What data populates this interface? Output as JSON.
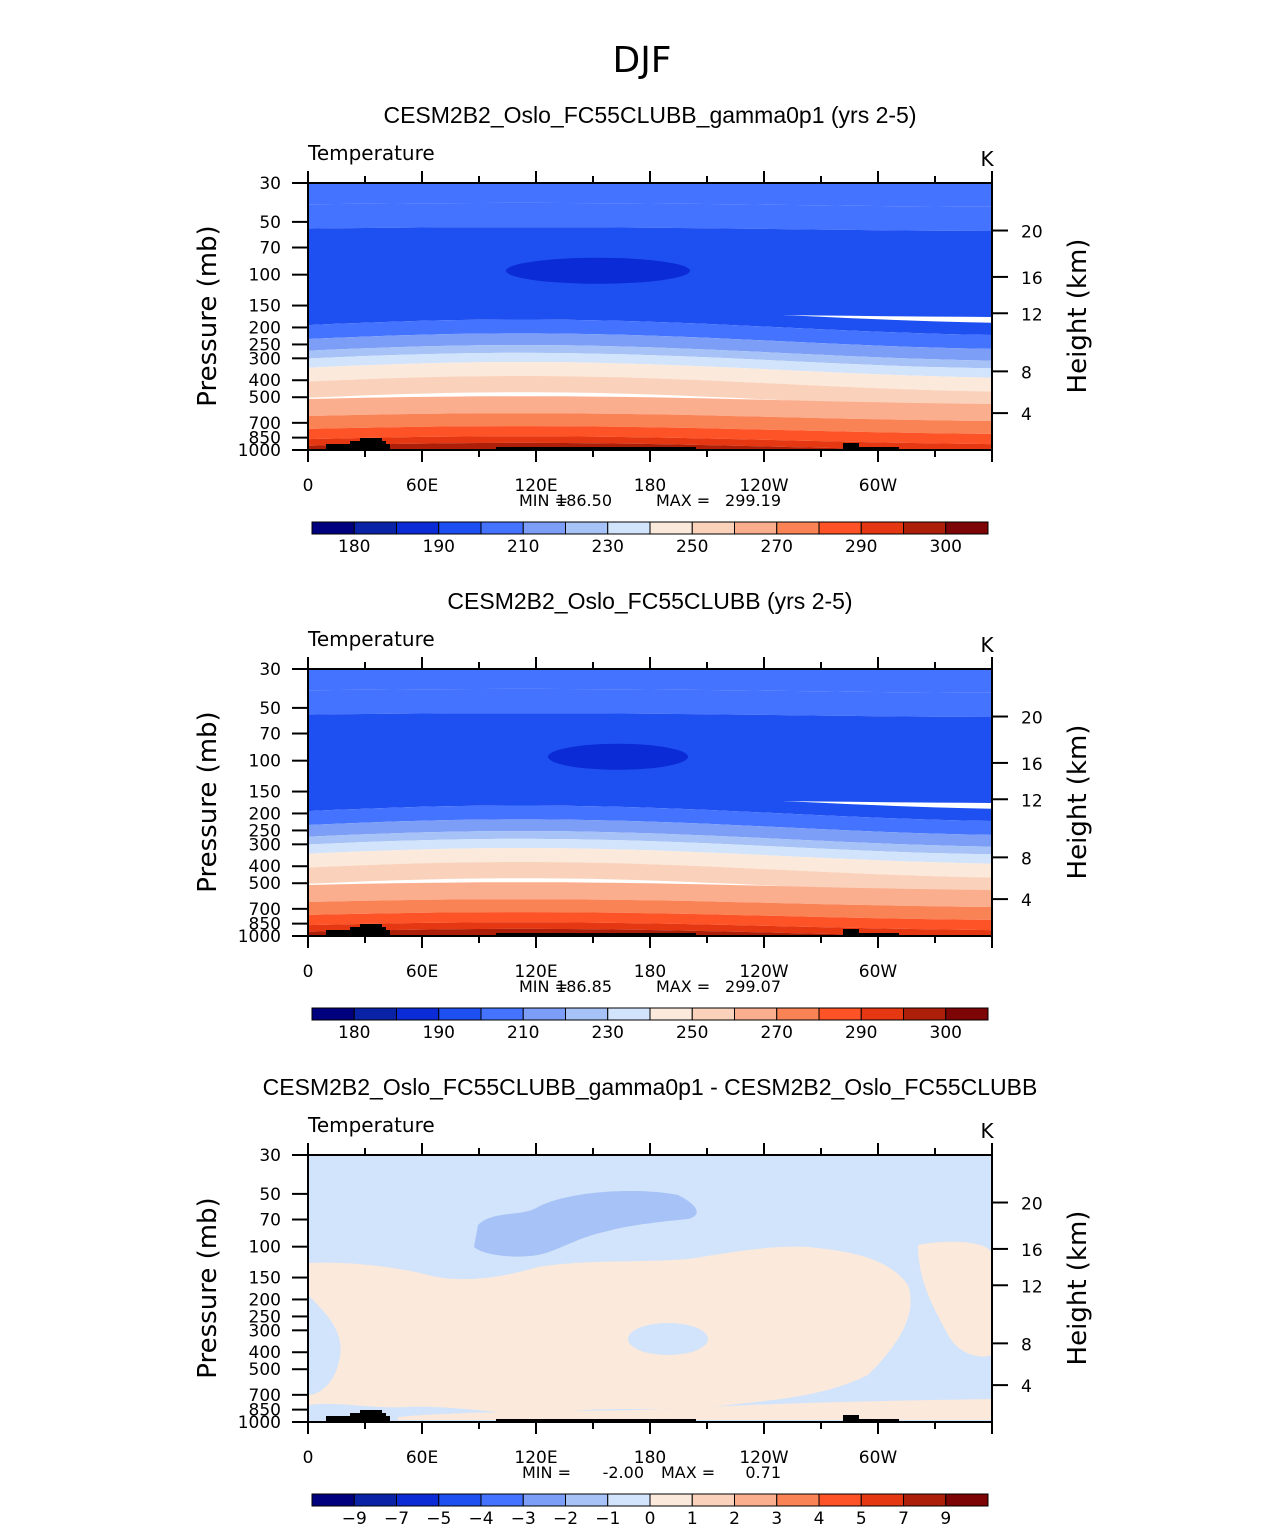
{
  "page_title": "DJF",
  "panels": [
    {
      "title": "CESM2B2_Oslo_FC55CLUBB_gamma0p1 (yrs 2-5)",
      "variable": "Temperature",
      "units": "K",
      "stats": {
        "min_label": "MIN =",
        "min": "186.50",
        "max_label": "MAX =",
        "max": "299.19"
      }
    },
    {
      "title": "CESM2B2_Oslo_FC55CLUBB (yrs 2-5)",
      "variable": "Temperature",
      "units": "K",
      "stats": {
        "min_label": "MIN =",
        "min": "186.85",
        "max_label": "MAX =",
        "max": "299.07"
      }
    },
    {
      "title": "CESM2B2_Oslo_FC55CLUBB_gamma0p1 - CESM2B2_Oslo_FC55CLUBB",
      "variable": "Temperature",
      "units": "K",
      "stats": {
        "min_label": "MIN =",
        "min": "-2.00",
        "max_label": "MAX =",
        "max": "0.71"
      }
    }
  ],
  "chart_data": [
    {
      "type": "heatmap",
      "title": "CESM2B2_Oslo_FC55CLUBB_gamma0p1 (yrs 2-5)",
      "ylabel": "Pressure (mb)",
      "y2label": "Height (km)",
      "x_ticks": [
        "0",
        "60E",
        "120E",
        "180",
        "120W",
        "60W"
      ],
      "y_ticks": [
        "30",
        "50",
        "70",
        "100",
        "150",
        "200",
        "250",
        "300",
        "400",
        "500",
        "700",
        "850",
        "1000"
      ],
      "y2_ticks": [
        "20",
        "16",
        "12",
        "8",
        "4"
      ],
      "ylim": [
        1000,
        30
      ],
      "y_scale": "log",
      "levels": [
        175,
        180,
        185,
        190,
        200,
        210,
        220,
        230,
        240,
        250,
        260,
        270,
        280,
        290,
        295,
        300
      ],
      "colorbar_labels": [
        "180",
        "190",
        "210",
        "230",
        "250",
        "270",
        "290",
        "300"
      ],
      "colors": [
        "#00007e",
        "#0a23a6",
        "#0b2bd6",
        "#1e4ff0",
        "#4373ff",
        "#7c9ef7",
        "#a6c2f6",
        "#d2e4fb",
        "#fbe9dc",
        "#fad2bb",
        "#fbae8e",
        "#fa8356",
        "#fd5326",
        "#e53711",
        "#ad1f08",
        "#7d0505"
      ],
      "band_temps_top_to_bottom": [
        206,
        202,
        196,
        199,
        205,
        215,
        225,
        235,
        245,
        255,
        265,
        275,
        285,
        292,
        297
      ]
    },
    {
      "type": "heatmap",
      "title": "CESM2B2_Oslo_FC55CLUBB (yrs 2-5)",
      "ylabel": "Pressure (mb)",
      "y2label": "Height (km)",
      "x_ticks": [
        "0",
        "60E",
        "120E",
        "180",
        "120W",
        "60W"
      ],
      "y_ticks": [
        "30",
        "50",
        "70",
        "100",
        "150",
        "200",
        "250",
        "300",
        "400",
        "500",
        "700",
        "850",
        "1000"
      ],
      "y2_ticks": [
        "20",
        "16",
        "12",
        "8",
        "4"
      ],
      "ylim": [
        1000,
        30
      ],
      "y_scale": "log",
      "levels": [
        175,
        180,
        185,
        190,
        200,
        210,
        220,
        230,
        240,
        250,
        260,
        270,
        280,
        290,
        295,
        300
      ],
      "colorbar_labels": [
        "180",
        "190",
        "210",
        "230",
        "250",
        "270",
        "290",
        "300"
      ],
      "colors": [
        "#00007e",
        "#0a23a6",
        "#0b2bd6",
        "#1e4ff0",
        "#4373ff",
        "#7c9ef7",
        "#a6c2f6",
        "#d2e4fb",
        "#fbe9dc",
        "#fad2bb",
        "#fbae8e",
        "#fa8356",
        "#fd5326",
        "#e53711",
        "#ad1f08",
        "#7d0505"
      ],
      "band_temps_top_to_bottom": [
        206,
        202,
        196,
        199,
        205,
        215,
        225,
        235,
        245,
        255,
        265,
        275,
        285,
        292,
        297
      ]
    },
    {
      "type": "heatmap",
      "title": "CESM2B2_Oslo_FC55CLUBB_gamma0p1 - CESM2B2_Oslo_FC55CLUBB",
      "ylabel": "Pressure (mb)",
      "y2label": "Height (km)",
      "x_ticks": [
        "0",
        "60E",
        "120E",
        "180",
        "120W",
        "60W"
      ],
      "y_ticks": [
        "30",
        "50",
        "70",
        "100",
        "150",
        "200",
        "250",
        "300",
        "400",
        "500",
        "700",
        "850",
        "1000"
      ],
      "y2_ticks": [
        "20",
        "16",
        "12",
        "8",
        "4"
      ],
      "ylim": [
        1000,
        30
      ],
      "y_scale": "log",
      "levels": [
        -10,
        -9,
        -7,
        -5,
        -4,
        -3,
        -2,
        -1,
        0,
        1,
        2,
        3,
        4,
        5,
        7,
        9
      ],
      "colorbar_labels": [
        "−9",
        "−7",
        "−5",
        "−4",
        "−3",
        "−2",
        "−1",
        "0",
        "1",
        "2",
        "3",
        "4",
        "5",
        "7",
        "9"
      ],
      "colors": [
        "#00007e",
        "#0a23a6",
        "#0b2bd6",
        "#1e4ff0",
        "#4373ff",
        "#7c9ef7",
        "#a6c2f6",
        "#d2e4fb",
        "#fbe9dc",
        "#fad2bb",
        "#fbae8e",
        "#fa8356",
        "#fd5326",
        "#e53711",
        "#ad1f08",
        "#7d0505"
      ],
      "background_range": "-1 to 0",
      "warm_region_range": "0 to 1",
      "cool_region_range": "-2 to -1"
    }
  ]
}
